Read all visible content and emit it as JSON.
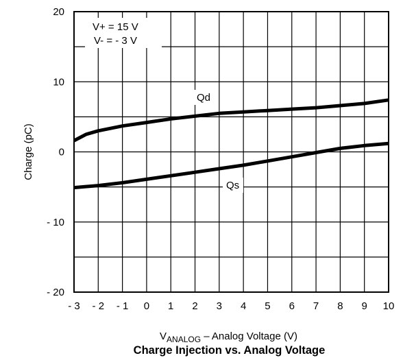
{
  "chart_data": {
    "type": "line",
    "title": "Charge Injection vs. Analog Voltage",
    "xlabel": {
      "main": "V",
      "subscript": "ANALOG",
      "rest": " – Analog Voltage (V)"
    },
    "ylabel": "Charge (pC)",
    "xlim": [
      -3,
      10
    ],
    "ylim": [
      -20,
      20
    ],
    "x_ticks": [
      -3,
      -2,
      -1,
      0,
      1,
      2,
      3,
      4,
      5,
      6,
      7,
      8,
      9,
      10
    ],
    "x_tick_labels": [
      "- 3",
      "- 2",
      "- 1",
      "0",
      "1",
      "2",
      "3",
      "4",
      "5",
      "6",
      "7",
      "8",
      "9",
      "10"
    ],
    "y_ticks": [
      -20,
      -10,
      0,
      10,
      20
    ],
    "y_tick_labels": [
      "- 20",
      "- 10",
      "0",
      "10",
      "20"
    ],
    "grid": true,
    "conditions": [
      "V+ = 15 V",
      "V- = - 3 V"
    ],
    "series": [
      {
        "name": "Qd",
        "x": [
          -3,
          -2.5,
          -2,
          -1,
          0,
          1,
          2,
          3,
          4,
          5,
          6,
          7,
          8,
          9,
          10
        ],
        "y": [
          1.6,
          2.5,
          3.0,
          3.7,
          4.2,
          4.7,
          5.1,
          5.5,
          5.7,
          5.9,
          6.1,
          6.3,
          6.6,
          6.9,
          7.4
        ]
      },
      {
        "name": "Qs",
        "x": [
          -3,
          -2,
          -1,
          0,
          1,
          2,
          3,
          4,
          5,
          6,
          7,
          8,
          9,
          10
        ],
        "y": [
          -5.1,
          -4.8,
          -4.4,
          -3.9,
          -3.4,
          -2.9,
          -2.4,
          -1.9,
          -1.3,
          -0.7,
          -0.1,
          0.5,
          0.9,
          1.2
        ]
      }
    ]
  }
}
